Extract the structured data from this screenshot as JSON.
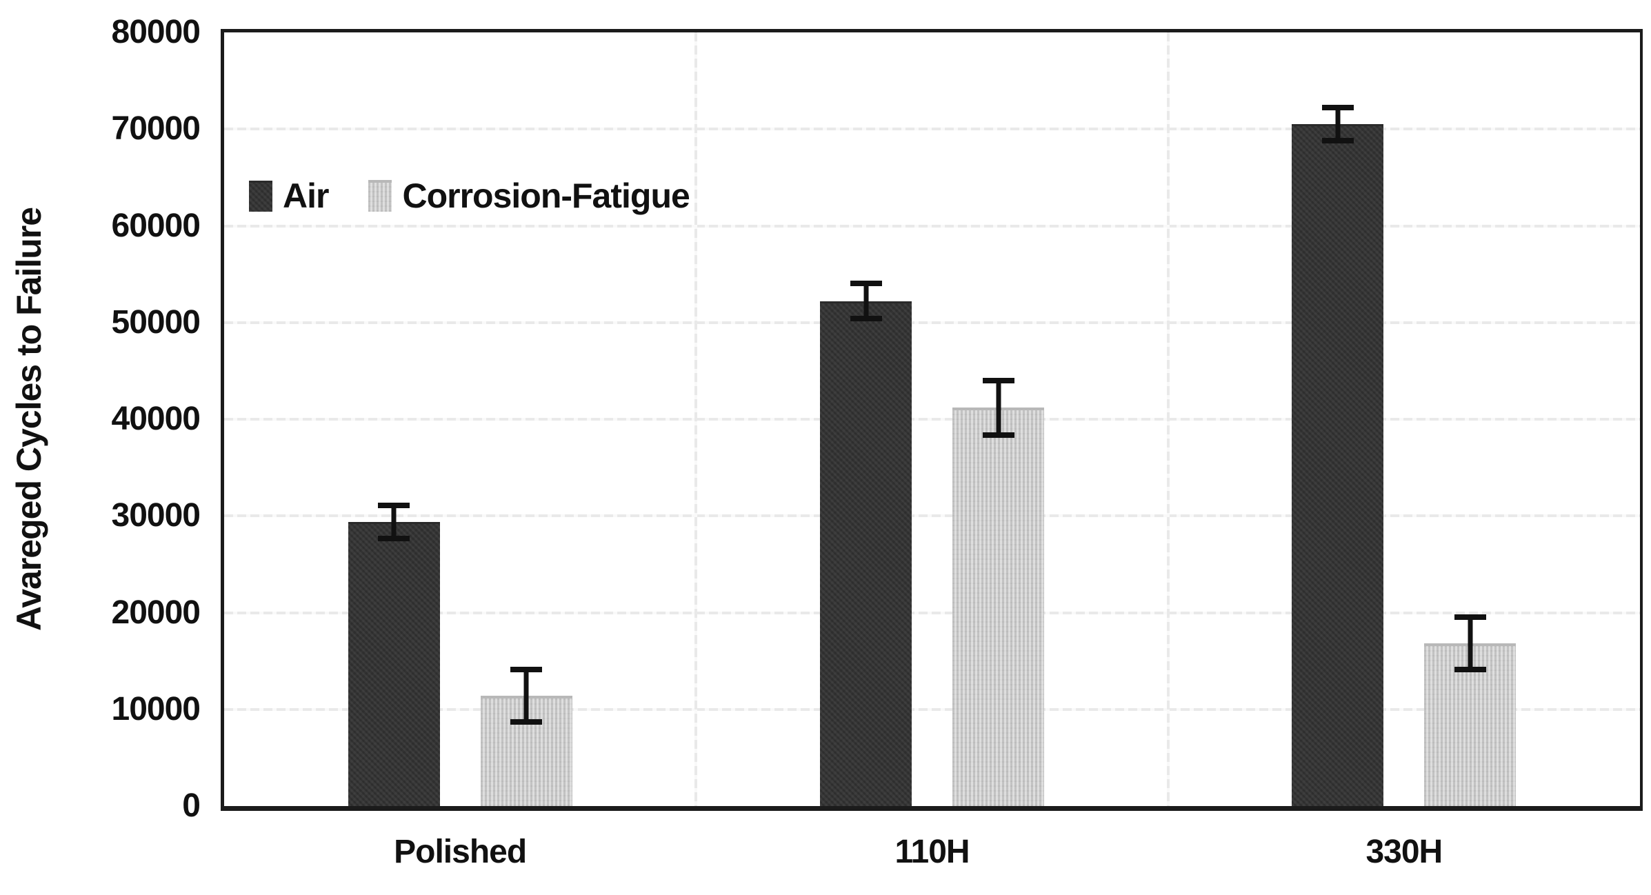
{
  "chart_data": {
    "type": "bar",
    "title": "",
    "ylabel": "Avareged Cycles to Failure",
    "xlabel": "",
    "ylim": [
      0,
      80000
    ],
    "yticks": [
      0,
      10000,
      20000,
      30000,
      40000,
      50000,
      60000,
      70000,
      80000
    ],
    "categories": [
      "Polished",
      "110H",
      "330H"
    ],
    "series": [
      {
        "name": "Air",
        "color": "#333333",
        "values": [
          29400,
          52200,
          70500
        ],
        "errors": [
          2000,
          2100,
          2000
        ]
      },
      {
        "name": "Corrosion-Fatigue",
        "color": "#d2d2d2",
        "values": [
          11400,
          41200,
          16800
        ],
        "errors": [
          3000,
          3100,
          3000
        ]
      }
    ],
    "grid": true,
    "legend_position": "top-left",
    "error_bar_color": "#111111",
    "gridline_color": "#e9e9e9",
    "frame_color": "#1b1b1b"
  }
}
